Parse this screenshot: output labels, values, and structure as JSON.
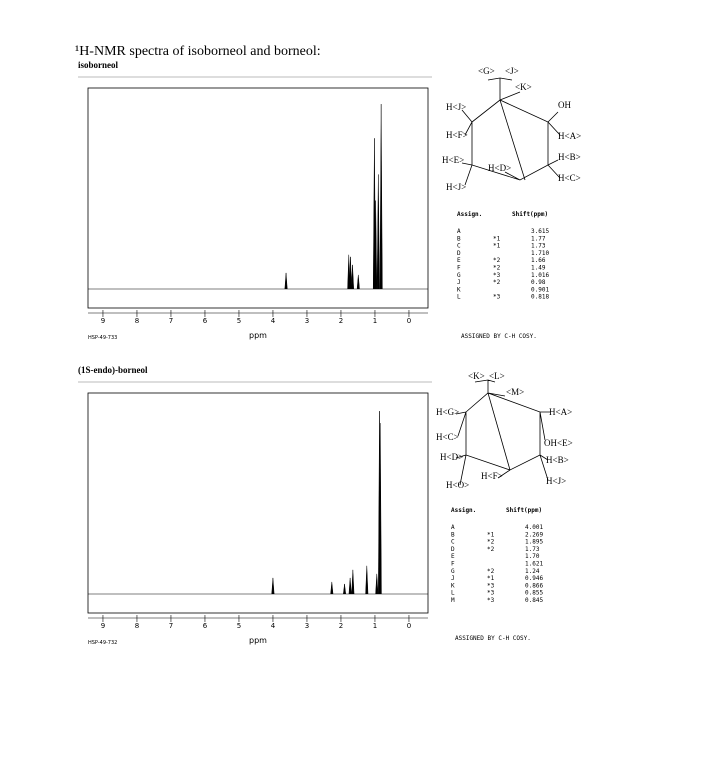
{
  "title": "¹H-NMR spectra of isoborneol and borneol:",
  "sections": [
    {
      "name": "isoborneol",
      "spectrum": {
        "xlim": [
          9.44,
          -0.56
        ],
        "xticks": [
          9,
          8,
          7,
          6,
          5,
          4,
          3,
          2,
          1,
          0
        ],
        "xlabel": "ppm",
        "ylim": [
          0,
          100
        ],
        "peaks": [
          {
            "ppm": 3.615,
            "height": 8
          },
          {
            "ppm": 1.77,
            "height": 17
          },
          {
            "ppm": 1.72,
            "height": 16
          },
          {
            "ppm": 1.66,
            "height": 12
          },
          {
            "ppm": 1.49,
            "height": 7
          },
          {
            "ppm": 1.016,
            "height": 75
          },
          {
            "ppm": 0.98,
            "height": 44
          },
          {
            "ppm": 0.901,
            "height": 57
          },
          {
            "ppm": 0.818,
            "height": 92
          }
        ]
      },
      "code": "HSP-49-733",
      "structure": {
        "labels": [
          "<G>",
          "<J>",
          "<K>",
          "H<J>",
          "OH",
          "H<F>",
          "H<A>",
          "H<E>",
          "H<B>",
          "H<D>",
          "H<C>",
          "H<J>"
        ]
      },
      "table": {
        "headers": [
          "Assign.",
          "Shift(ppm)"
        ],
        "rows": [
          {
            "label": "A",
            "shift": "3.615"
          },
          {
            "label": "B",
            "note": "*1",
            "shift": "1.77"
          },
          {
            "label": "C",
            "note": "*1",
            "shift": "1.73"
          },
          {
            "label": "D",
            "shift": "1.710"
          },
          {
            "label": "E",
            "note": "*2",
            "shift": "1.66"
          },
          {
            "label": "F",
            "note": "*2",
            "shift": "1.49"
          },
          {
            "label": "G",
            "note": "*3",
            "shift": "1.016"
          },
          {
            "label": "J",
            "note": "*2",
            "shift": "0.98"
          },
          {
            "label": "K",
            "shift": "0.901"
          },
          {
            "label": "L",
            "note": "*3",
            "shift": "0.818"
          }
        ]
      },
      "note": "ASSIGNED BY C-H COSY."
    },
    {
      "name": "(1S-endo)-borneol",
      "spectrum": {
        "xlim": [
          9.44,
          -0.56
        ],
        "xticks": [
          9,
          8,
          7,
          6,
          5,
          4,
          3,
          2,
          1,
          0
        ],
        "xlabel": "ppm",
        "ylim": [
          0,
          100
        ],
        "peaks": [
          {
            "ppm": 4.001,
            "height": 8
          },
          {
            "ppm": 2.269,
            "height": 6
          },
          {
            "ppm": 1.895,
            "height": 5
          },
          {
            "ppm": 1.73,
            "height": 8
          },
          {
            "ppm": 1.65,
            "height": 12
          },
          {
            "ppm": 1.24,
            "height": 14
          },
          {
            "ppm": 0.946,
            "height": 10
          },
          {
            "ppm": 0.866,
            "height": 91
          },
          {
            "ppm": 0.845,
            "height": 85
          }
        ]
      },
      "code": "HSP-49-732",
      "structure": {
        "labels": [
          "<K>",
          "<L>",
          "<M>",
          "H<G>",
          "H<A>",
          "H<C>",
          "OH<E>",
          "H<D>",
          "H<B>",
          "H<F>",
          "H<J>",
          "H<O>"
        ]
      },
      "table": {
        "headers": [
          "Assign.",
          "Shift(ppm)"
        ],
        "rows": [
          {
            "label": "A",
            "shift": "4.001"
          },
          {
            "label": "B",
            "note": "*1",
            "shift": "2.269"
          },
          {
            "label": "C",
            "note": "*2",
            "shift": "1.895"
          },
          {
            "label": "D",
            "note": "*2",
            "shift": "1.73"
          },
          {
            "label": "E",
            "shift": "1.70"
          },
          {
            "label": "F",
            "shift": "1.621"
          },
          {
            "label": "G",
            "note": "*2",
            "shift": "1.24"
          },
          {
            "label": "J",
            "note": "*1",
            "shift": "0.946"
          },
          {
            "label": "K",
            "note": "*3",
            "shift": "0.866"
          },
          {
            "label": "L",
            "note": "*3",
            "shift": "0.855"
          },
          {
            "label": "M",
            "note": "*3",
            "shift": "0.845"
          }
        ]
      },
      "note": "ASSIGNED BY C-H COSY."
    }
  ]
}
